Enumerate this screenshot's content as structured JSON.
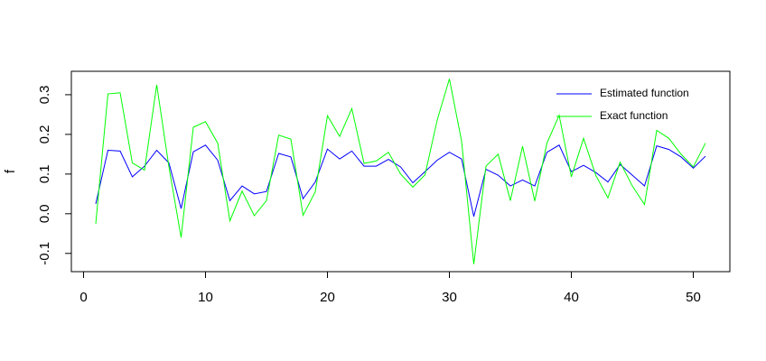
{
  "chart_data": {
    "type": "line",
    "ylabel": "f",
    "x": [
      1,
      2,
      3,
      4,
      5,
      6,
      7,
      8,
      9,
      10,
      11,
      12,
      13,
      14,
      15,
      16,
      17,
      18,
      19,
      20,
      21,
      22,
      23,
      24,
      25,
      26,
      27,
      28,
      29,
      30,
      31,
      32,
      33,
      34,
      35,
      36,
      37,
      38,
      39,
      40,
      41,
      42,
      43,
      44,
      45,
      46,
      47,
      48,
      49,
      50,
      51
    ],
    "series": [
      {
        "name": "Estimated function",
        "color": "#0000ff",
        "values": [
          0.025,
          0.16,
          0.158,
          0.093,
          0.12,
          0.16,
          0.128,
          0.013,
          0.156,
          0.173,
          0.135,
          0.033,
          0.07,
          0.05,
          0.056,
          0.152,
          0.143,
          0.038,
          0.08,
          0.163,
          0.138,
          0.158,
          0.12,
          0.12,
          0.137,
          0.118,
          0.078,
          0.106,
          0.135,
          0.155,
          0.138,
          -0.007,
          0.112,
          0.097,
          0.07,
          0.085,
          0.07,
          0.155,
          0.173,
          0.106,
          0.122,
          0.104,
          0.08,
          0.124,
          0.097,
          0.07,
          0.171,
          0.162,
          0.143,
          0.115,
          0.145
        ]
      },
      {
        "name": "Exact function",
        "color": "#00ff00",
        "values": [
          -0.025,
          0.302,
          0.305,
          0.128,
          0.11,
          0.325,
          0.118,
          -0.06,
          0.218,
          0.232,
          0.178,
          -0.018,
          0.057,
          -0.005,
          0.033,
          0.198,
          0.188,
          -0.004,
          0.055,
          0.247,
          0.195,
          0.265,
          0.127,
          0.133,
          0.155,
          0.1,
          0.067,
          0.098,
          0.236,
          0.34,
          0.183,
          -0.127,
          0.12,
          0.15,
          0.033,
          0.17,
          0.032,
          0.178,
          0.248,
          0.093,
          0.19,
          0.097,
          0.04,
          0.13,
          0.07,
          0.023,
          0.21,
          0.19,
          0.15,
          0.118,
          0.178
        ]
      }
    ],
    "xlim": [
      -1,
      53
    ],
    "xticks": [
      0,
      10,
      20,
      30,
      40,
      50
    ],
    "ylim": [
      -0.146,
      0.359
    ],
    "yticks": [
      -0.1,
      {
        "value": 0,
        "label": "0.0"
      },
      0.1,
      0.2,
      0.3
    ],
    "legend": "topright"
  }
}
